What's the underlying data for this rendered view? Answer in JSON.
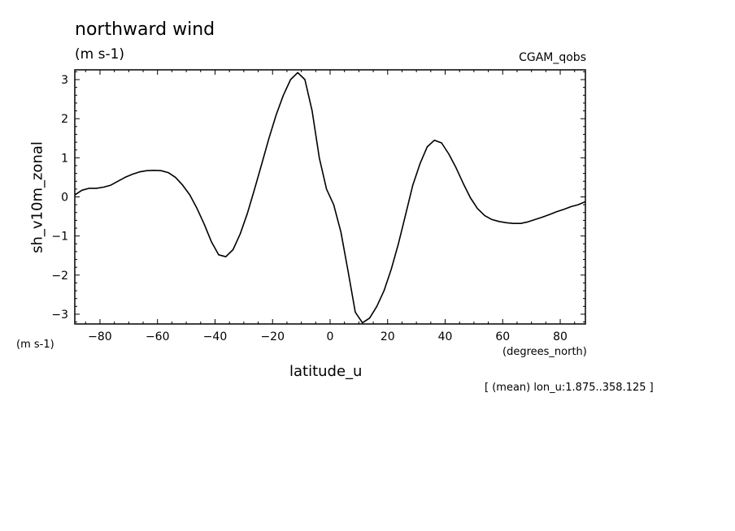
{
  "chart_data": {
    "type": "line",
    "title": "northward wind",
    "subtitle": "(m s-1)",
    "dataset": "CGAM_qobs",
    "xlabel": "latitude_u",
    "ylabel": "sh_v10m_zonal",
    "x_units": "(degrees_north)",
    "y_units": "(m s-1)",
    "footnote": "[ (mean) lon_u:1.875..358.125 ]",
    "xlim": [
      -88.75,
      88.75
    ],
    "ylim": [
      -3.25,
      3.25
    ],
    "xticks": [
      -80,
      -60,
      -40,
      -20,
      0,
      20,
      40,
      60,
      80
    ],
    "xtick_labels": [
      "−80",
      "−60",
      "−40",
      "−20",
      "0",
      "20",
      "40",
      "60",
      "80"
    ],
    "yticks": [
      -3,
      -2,
      -1,
      0,
      1,
      2,
      3
    ],
    "ytick_labels": [
      "−3",
      "−2",
      "−1",
      "0",
      "1",
      "2",
      "3"
    ],
    "grid": false,
    "series": [
      {
        "x": [
          -88.75,
          -86.25,
          -83.75,
          -81.25,
          -78.75,
          -76.25,
          -73.75,
          -71.25,
          -68.75,
          -66.25,
          -63.75,
          -61.25,
          -58.75,
          -56.25,
          -53.75,
          -51.25,
          -48.75,
          -46.25,
          -43.75,
          -41.25,
          -38.75,
          -36.25,
          -33.75,
          -31.25,
          -28.75,
          -26.25,
          -23.75,
          -21.25,
          -18.75,
          -16.25,
          -13.75,
          -11.25,
          -8.75,
          -6.25,
          -3.75,
          -1.25,
          1.25,
          3.75,
          6.25,
          8.75,
          11.25,
          13.75,
          16.25,
          18.75,
          21.25,
          23.75,
          26.25,
          28.75,
          31.25,
          33.75,
          36.25,
          38.75,
          41.25,
          43.75,
          46.25,
          48.75,
          51.25,
          53.75,
          56.25,
          58.75,
          61.25,
          63.75,
          66.25,
          68.75,
          71.25,
          73.75,
          76.25,
          78.75,
          81.25,
          83.75,
          86.25,
          88.75
        ],
        "values": [
          0.05,
          0.17,
          0.22,
          0.22,
          0.25,
          0.3,
          0.4,
          0.5,
          0.58,
          0.64,
          0.67,
          0.68,
          0.67,
          0.62,
          0.5,
          0.3,
          0.05,
          -0.3,
          -0.7,
          -1.15,
          -1.48,
          -1.53,
          -1.35,
          -0.95,
          -0.42,
          0.2,
          0.85,
          1.5,
          2.1,
          2.6,
          3.0,
          3.18,
          3.0,
          2.2,
          1.0,
          0.2,
          -0.2,
          -0.9,
          -1.9,
          -2.95,
          -3.22,
          -3.1,
          -2.8,
          -2.4,
          -1.85,
          -1.2,
          -0.45,
          0.3,
          0.85,
          1.28,
          1.45,
          1.38,
          1.1,
          0.75,
          0.35,
          -0.02,
          -0.3,
          -0.48,
          -0.58,
          -0.63,
          -0.66,
          -0.68,
          -0.68,
          -0.64,
          -0.58,
          -0.52,
          -0.45,
          -0.38,
          -0.32,
          -0.25,
          -0.2,
          -0.12
        ]
      }
    ]
  }
}
